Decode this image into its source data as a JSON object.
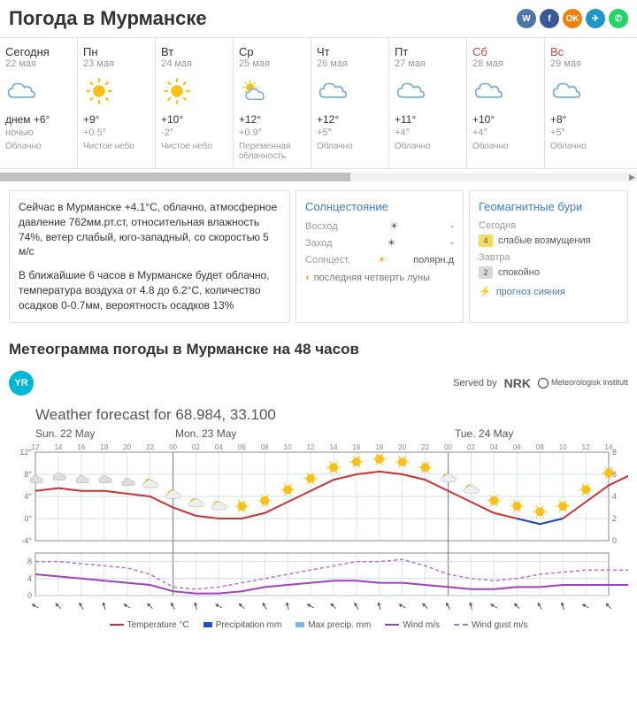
{
  "title": "Погода в Мурманске",
  "social": [
    {
      "name": "vk",
      "bg": "#4a76a8",
      "glyph": "W"
    },
    {
      "name": "fb",
      "bg": "#3b5998",
      "glyph": "f"
    },
    {
      "name": "ok",
      "bg": "#ee8208",
      "glyph": "OK"
    },
    {
      "name": "tg",
      "bg": "#1e96c8",
      "glyph": "✈"
    },
    {
      "name": "wa",
      "bg": "#25d366",
      "glyph": "✆"
    }
  ],
  "days": [
    {
      "name": "Сегодня",
      "date": "22 мая",
      "icon": "cloud",
      "temp_label": "днем +6°",
      "night_label": "ночью",
      "desc": "Облачно"
    },
    {
      "name": "Пн",
      "date": "23 мая",
      "icon": "sun",
      "temp_label": "+9°",
      "night_label": "+0.5°",
      "desc": "Чистое небо"
    },
    {
      "name": "Вт",
      "date": "24 мая",
      "icon": "sun",
      "temp_label": "+10°",
      "night_label": "-2°",
      "desc": "Чистое небо"
    },
    {
      "name": "Ср",
      "date": "25 мая",
      "icon": "suncloud",
      "temp_label": "+12°",
      "night_label": "+0.9°",
      "desc": "Переменная облачность"
    },
    {
      "name": "Чт",
      "date": "26 мая",
      "icon": "cloud",
      "temp_label": "+12°",
      "night_label": "+5°",
      "desc": "Облачно"
    },
    {
      "name": "Пт",
      "date": "27 мая",
      "icon": "cloud",
      "temp_label": "+11°",
      "night_label": "+4°",
      "desc": "Облачно"
    },
    {
      "name": "Сб",
      "date": "28 мая",
      "icon": "cloud",
      "temp_label": "+10°",
      "night_label": "+4°",
      "desc": "Облачно",
      "weekend": true
    },
    {
      "name": "Вс",
      "date": "29 мая",
      "icon": "cloud",
      "temp_label": "+8°",
      "night_label": "+5°",
      "desc": "Облачно",
      "weekend": true
    }
  ],
  "current": {
    "p1": "Сейчас в Мурманске +4.1°C, облачно, атмосферное давление 762мм.рт.ст, относительная влажность 74%, ветер слабый, юго-западный, со скоростью 5 м/с",
    "p2": "В ближайшие 6 часов в Мурманске будет облачно, температура воздуха от 4.8 до 6.2°C, количество осадков 0-0.7мм, вероятность осадков 13%"
  },
  "sun": {
    "title": "Солнцестояние",
    "rise_label": "Восход",
    "rise_val": "-",
    "set_label": "Заход",
    "set_val": "-",
    "sol_label": "Солнцест.",
    "sol_val": "полярн.д",
    "moon": "последняя четверть луны"
  },
  "geo": {
    "title": "Геомагнитные бури",
    "today_label": "Сегодня",
    "today_level": "4",
    "today_bg": "#f9d85e",
    "today_text": "слабые возмущения",
    "tomorrow_label": "Завтра",
    "tomorrow_level": "2",
    "tomorrow_bg": "#d8d8d8",
    "tomorrow_text": "спокойно",
    "forecast_link": "прогноз сияния"
  },
  "meteo": {
    "title": "Метеограмма погоды в Мурманске на 48 часов",
    "yr": "YR",
    "served": "Served by",
    "nrk": "NRK",
    "inst": "Meteorologisk institutt",
    "chart_title": "Weather forecast for 68.984, 33.100",
    "day1": "Sun. 22 May",
    "day2": "Mon. 23 May",
    "day3": "Tue. 24 May",
    "legend": {
      "temp": "Temperature °C",
      "precip": "Precipitation mm",
      "maxprecip": "Max precip. mm",
      "wind": "Wind m/s",
      "gust": "Wind gust m/s"
    },
    "chart": {
      "hours": [
        "12",
        "14",
        "16",
        "18",
        "20",
        "22",
        "00",
        "02",
        "04",
        "06",
        "08",
        "10",
        "12",
        "14",
        "16",
        "18",
        "20",
        "22",
        "00",
        "02",
        "04",
        "06",
        "08",
        "10",
        "12",
        "14"
      ],
      "y_temp": [
        12,
        8,
        4,
        0,
        -4
      ],
      "y_wind": [
        8,
        4,
        0
      ],
      "y_right": [
        8,
        6,
        4,
        2,
        0
      ],
      "temp_color": "#c73232",
      "precip_color": "#2050c0",
      "maxprecip_color": "#7eb8e8",
      "wind_color": "#a040c0",
      "gust_color": "#b870d0",
      "grid_color": "#c8d4e8",
      "temp_path": [
        5,
        5.5,
        5,
        5,
        4.5,
        4,
        2,
        0.5,
        0,
        0,
        1,
        3,
        5,
        7,
        8,
        8.5,
        8,
        7,
        5,
        3,
        1,
        0,
        -1,
        0,
        3,
        6,
        8
      ],
      "wind_path": [
        5,
        4.5,
        4,
        3.5,
        3,
        2.5,
        1,
        0.5,
        0.5,
        1,
        2,
        2.5,
        3,
        3.5,
        3.5,
        3,
        3,
        2.5,
        2,
        1.5,
        1.5,
        2,
        2,
        2.5,
        2.5,
        2.5,
        2.5
      ],
      "gust_path": [
        8,
        8,
        7.5,
        7,
        6.5,
        5,
        2,
        1.5,
        2,
        3,
        4,
        5,
        6,
        7,
        8,
        8,
        8.5,
        7,
        5,
        4,
        3.5,
        4,
        5,
        5.5,
        6,
        6,
        6
      ],
      "weather_icons": [
        {
          "h": 0,
          "type": "cloud"
        },
        {
          "h": 1,
          "type": "cloud"
        },
        {
          "h": 2,
          "type": "cloud"
        },
        {
          "h": 3,
          "type": "cloud"
        },
        {
          "h": 4,
          "type": "cloud"
        },
        {
          "h": 5,
          "type": "suncloud"
        },
        {
          "h": 6,
          "type": "suncloud"
        },
        {
          "h": 7,
          "type": "suncloud"
        },
        {
          "h": 8,
          "type": "suncloud"
        },
        {
          "h": 9,
          "type": "sun"
        },
        {
          "h": 10,
          "type": "sun"
        },
        {
          "h": 11,
          "type": "sun"
        },
        {
          "h": 12,
          "type": "sun"
        },
        {
          "h": 13,
          "type": "sun"
        },
        {
          "h": 14,
          "type": "sun"
        },
        {
          "h": 15,
          "type": "sun"
        },
        {
          "h": 16,
          "type": "sun"
        },
        {
          "h": 17,
          "type": "sun"
        },
        {
          "h": 18,
          "type": "suncloud"
        },
        {
          "h": 19,
          "type": "suncloud"
        },
        {
          "h": 20,
          "type": "sun"
        },
        {
          "h": 21,
          "type": "sun"
        },
        {
          "h": 22,
          "type": "sun"
        },
        {
          "h": 23,
          "type": "sun"
        },
        {
          "h": 24,
          "type": "sun"
        },
        {
          "h": 25,
          "type": "sun"
        }
      ]
    }
  }
}
